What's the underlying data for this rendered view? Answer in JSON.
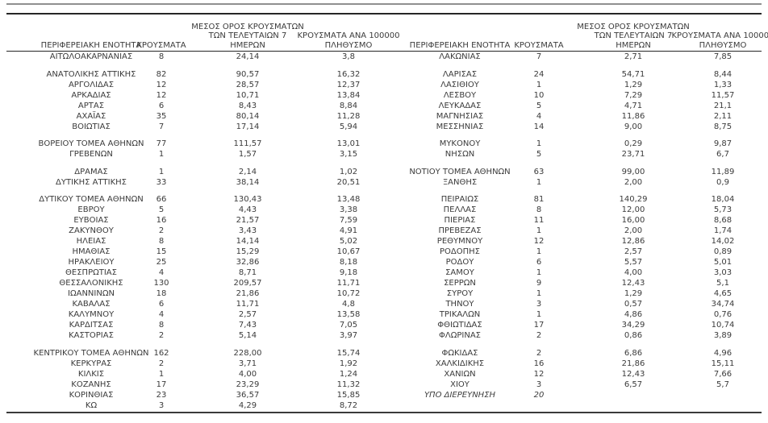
{
  "document": {
    "type": "regional-cases-table",
    "text_color": "#3b3b3b",
    "rule_colors": {
      "top_gray": "#8f8f8f",
      "top_black": "#262626",
      "bottom": "#3a3a3a"
    }
  },
  "headers": {
    "region": "ΠΕΡΙΦΕΡΕΙΑΚΗ ΕΝΟΤΗΤΑ",
    "cases": "ΚΡΟΥΣΜΑΤΑ",
    "avg7_lines": [
      "ΜΕΣΟΣ ΟΡΟΣ ΚΡΟΥΣΜΑΤΩΝ",
      "ΤΩΝ ΤΕΛΕΥΤΑΙΩΝ 7",
      "ΗΜΕΡΩΝ"
    ],
    "per100k_lines": [
      "ΚΡΟΥΣΜΑΤΑ ΑΝΑ 100000",
      "ΠΛΗΘΥΣΜΟ"
    ]
  },
  "left_rows": [
    [
      "ΑΙΤΩΛΟΑΚΑΡΝΑΝΙΑΣ",
      "8",
      "24,14",
      "3,8"
    ],
    null,
    [
      "ΑΝΑΤΟΛΙΚΗΣ ΑΤΤΙΚΗΣ",
      "82",
      "90,57",
      "16,32"
    ],
    [
      "ΑΡΓΟΛΙΔΑΣ",
      "12",
      "28,57",
      "12,37"
    ],
    [
      "ΑΡΚΑΔΙΑΣ",
      "12",
      "10,71",
      "13,84"
    ],
    [
      "ΑΡΤΑΣ",
      "6",
      "8,43",
      "8,84"
    ],
    [
      "ΑΧΑΪΑΣ",
      "35",
      "80,14",
      "11,28"
    ],
    [
      "ΒΟΙΩΤΙΑΣ",
      "7",
      "17,14",
      "5,94"
    ],
    null,
    [
      "ΒΟΡΕΙΟΥ ΤΟΜΕΑ ΑΘΗΝΩΝ",
      "77",
      "111,57",
      "13,01"
    ],
    [
      "ΓΡΕΒΕΝΩΝ",
      "1",
      "1,57",
      "3,15"
    ],
    null,
    [
      "ΔΡΑΜΑΣ",
      "1",
      "2,14",
      "1,02"
    ],
    [
      "ΔΥΤΙΚΗΣ ΑΤΤΙΚΗΣ",
      "33",
      "38,14",
      "20,51"
    ],
    null,
    [
      "ΔΥΤΙΚΟΥ ΤΟΜΕΑ ΑΘΗΝΩΝ",
      "66",
      "130,43",
      "13,48"
    ],
    [
      "ΕΒΡΟΥ",
      "5",
      "4,43",
      "3,38"
    ],
    [
      "ΕΥΒΟΙΑΣ",
      "16",
      "21,57",
      "7,59"
    ],
    [
      "ΖΑΚΥΝΘΟΥ",
      "2",
      "3,43",
      "4,91"
    ],
    [
      "ΗΛΕΙΑΣ",
      "8",
      "14,14",
      "5,02"
    ],
    [
      "ΗΜΑΘΙΑΣ",
      "15",
      "15,29",
      "10,67"
    ],
    [
      "ΗΡΑΚΛΕΙΟΥ",
      "25",
      "32,86",
      "8,18"
    ],
    [
      "ΘΕΣΠΡΩΤΙΑΣ",
      "4",
      "8,71",
      "9,18"
    ],
    [
      "ΘΕΣΣΑΛΟΝΙΚΗΣ",
      "130",
      "209,57",
      "11,71"
    ],
    [
      "ΙΩΑΝΝΙΝΩΝ",
      "18",
      "21,86",
      "10,72"
    ],
    [
      "ΚΑΒΑΛΑΣ",
      "6",
      "11,71",
      "4,8"
    ],
    [
      "ΚΑΛΥΜΝΟΥ",
      "4",
      "2,57",
      "13,58"
    ],
    [
      "ΚΑΡΔΙΤΣΑΣ",
      "8",
      "7,43",
      "7,05"
    ],
    [
      "ΚΑΣΤΟΡΙΑΣ",
      "2",
      "5,14",
      "3,97"
    ],
    null,
    [
      "ΚΕΝΤΡΙΚΟΥ ΤΟΜΕΑ ΑΘΗΝΩΝ",
      "162",
      "228,00",
      "15,74"
    ],
    [
      "ΚΕΡΚΥΡΑΣ",
      "2",
      "3,71",
      "1,92"
    ],
    [
      "ΚΙΛΚΙΣ",
      "1",
      "4,00",
      "1,24"
    ],
    [
      "ΚΟΖΑΝΗΣ",
      "17",
      "23,29",
      "11,32"
    ],
    [
      "ΚΟΡΙΝΘΙΑΣ",
      "23",
      "36,57",
      "15,85"
    ],
    [
      "ΚΩ",
      "3",
      "4,29",
      "8,72"
    ]
  ],
  "right_rows": [
    [
      "ΛΑΚΩΝΙΑΣ",
      "7",
      "2,71",
      "7,85"
    ],
    null,
    [
      "ΛΑΡΙΣΑΣ",
      "24",
      "54,71",
      "8,44"
    ],
    [
      "ΛΑΣΙΘΙΟΥ",
      "1",
      "1,29",
      "1,33"
    ],
    [
      "ΛΕΣΒΟΥ",
      "10",
      "7,29",
      "11,57"
    ],
    [
      "ΛΕΥΚΑΔΑΣ",
      "5",
      "4,71",
      "21,1"
    ],
    [
      "ΜΑΓΝΗΣΙΑΣ",
      "4",
      "11,86",
      "2,11"
    ],
    [
      "ΜΕΣΣΗΝΙΑΣ",
      "14",
      "9,00",
      "8,75"
    ],
    null,
    [
      "ΜΥΚΟΝΟΥ",
      "1",
      "0,29",
      "9,87"
    ],
    [
      "ΝΗΣΩΝ",
      "5",
      "23,71",
      "6,7"
    ],
    null,
    [
      "ΝΟΤΙΟΥ ΤΟΜΕΑ ΑΘΗΝΩΝ",
      "63",
      "99,00",
      "11,89"
    ],
    [
      "ΞΑΝΘΗΣ",
      "1",
      "2,00",
      "0,9"
    ],
    null,
    [
      "ΠΕΙΡΑΙΩΣ",
      "81",
      "140,29",
      "18,04"
    ],
    [
      "ΠΕΛΛΑΣ",
      "8",
      "12,00",
      "5,73"
    ],
    [
      "ΠΙΕΡΙΑΣ",
      "11",
      "16,00",
      "8,68"
    ],
    [
      "ΠΡΕΒΕΖΑΣ",
      "1",
      "2,00",
      "1,74"
    ],
    [
      "ΡΕΘΥΜΝΟΥ",
      "12",
      "12,86",
      "14,02"
    ],
    [
      "ΡΟΔΟΠΗΣ",
      "1",
      "2,57",
      "0,89"
    ],
    [
      "ΡΟΔΟΥ",
      "6",
      "5,57",
      "5,01"
    ],
    [
      "ΣΑΜΟΥ",
      "1",
      "4,00",
      "3,03"
    ],
    [
      "ΣΕΡΡΩΝ",
      "9",
      "12,43",
      "5,1"
    ],
    [
      "ΣΥΡΟΥ",
      "1",
      "1,29",
      "4,65"
    ],
    [
      "ΤΗΝΟΥ",
      "3",
      "0,57",
      "34,74"
    ],
    [
      "ΤΡΙΚΑΛΩΝ",
      "1",
      "4,86",
      "0,76"
    ],
    [
      "ΦΘΙΩΤΙΔΑΣ",
      "17",
      "34,29",
      "10,74"
    ],
    [
      "ΦΛΩΡΙΝΑΣ",
      "2",
      "0,86",
      "3,89"
    ],
    null,
    [
      "ΦΩΚΙΔΑΣ",
      "2",
      "6,86",
      "4,96"
    ],
    [
      "ΧΑΛΚΙΔΙΚΗΣ",
      "16",
      "21,86",
      "15,11"
    ],
    [
      "ΧΑΝΙΩΝ",
      "12",
      "12,43",
      "7,66"
    ],
    [
      "ΧΙΟΥ",
      "3",
      "6,57",
      "5,7"
    ],
    {
      "cells": [
        "ΥΠΟ ΔΙΕΡΕΥΝΗΣΗ",
        "20",
        "",
        ""
      ],
      "italic": true
    },
    null
  ]
}
